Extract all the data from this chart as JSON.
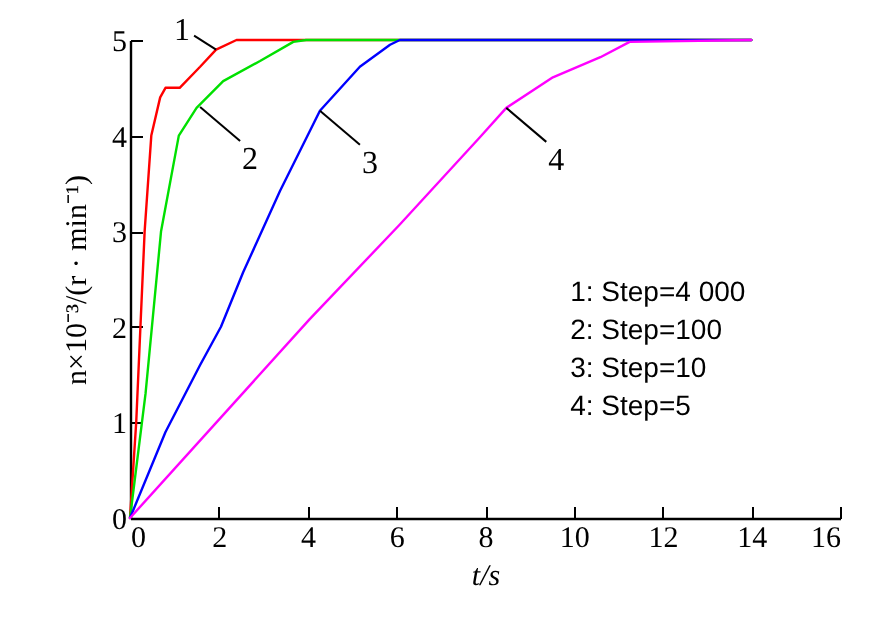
{
  "chart_data": {
    "type": "line",
    "xlabel": "t/s",
    "ylabel": "n×10⁻³/(r · min⁻¹)",
    "xlim": [
      0,
      16
    ],
    "ylim": [
      0,
      5
    ],
    "xticks": [
      0,
      2,
      4,
      6,
      8,
      10,
      12,
      14,
      16
    ],
    "yticks": [
      0,
      1,
      2,
      3,
      4,
      5
    ],
    "grid": false,
    "marker": "none",
    "line_style": "solid",
    "series": [
      {
        "color": "#ff0000",
        "x": [
          0,
          0.14,
          0.33,
          0.48,
          0.68,
          0.8,
          1.12,
          1.58,
          1.94,
          2.4,
          2.7,
          3,
          14
        ],
        "values": [
          0,
          1,
          3,
          4,
          4.4,
          4.5,
          4.5,
          4.72,
          4.9,
          5,
          5,
          5,
          5
        ]
      },
      {
        "color": "#00e000",
        "x": [
          0,
          0.35,
          0.7,
          1.1,
          1.5,
          2.1,
          2.93,
          3.68,
          3.97,
          14
        ],
        "values": [
          0,
          1.3,
          3,
          4,
          4.29,
          4.57,
          4.78,
          4.98,
          5,
          5
        ]
      },
      {
        "color": "#0000ff",
        "x": [
          0,
          0.8,
          1.58,
          2.05,
          2.55,
          3.38,
          4.28,
          5.18,
          5.86,
          6.08,
          14
        ],
        "values": [
          0,
          0.9,
          1.6,
          2,
          2.57,
          3.42,
          4.26,
          4.72,
          4.95,
          5,
          5
        ]
      },
      {
        "color": "#ff00ff",
        "x": [
          0,
          4.05,
          6.08,
          7.88,
          8.48,
          9.53,
          10.6,
          11.26,
          14
        ],
        "values": [
          0,
          2.08,
          3.07,
          3.98,
          4.29,
          4.61,
          4.82,
          4.98,
          5
        ]
      }
    ],
    "annotations": [
      {
        "text": "1",
        "x": 1.94,
        "y": 4.9
      },
      {
        "text": "2",
        "x": 1.58,
        "y": 4.3
      },
      {
        "text": "3",
        "x": 4.28,
        "y": 4.26
      },
      {
        "text": "4",
        "x": 8.48,
        "y": 4.29
      },
      "1: Step=4 000",
      "2: Step=100",
      "3: Step=10",
      "4: Step=5"
    ]
  }
}
